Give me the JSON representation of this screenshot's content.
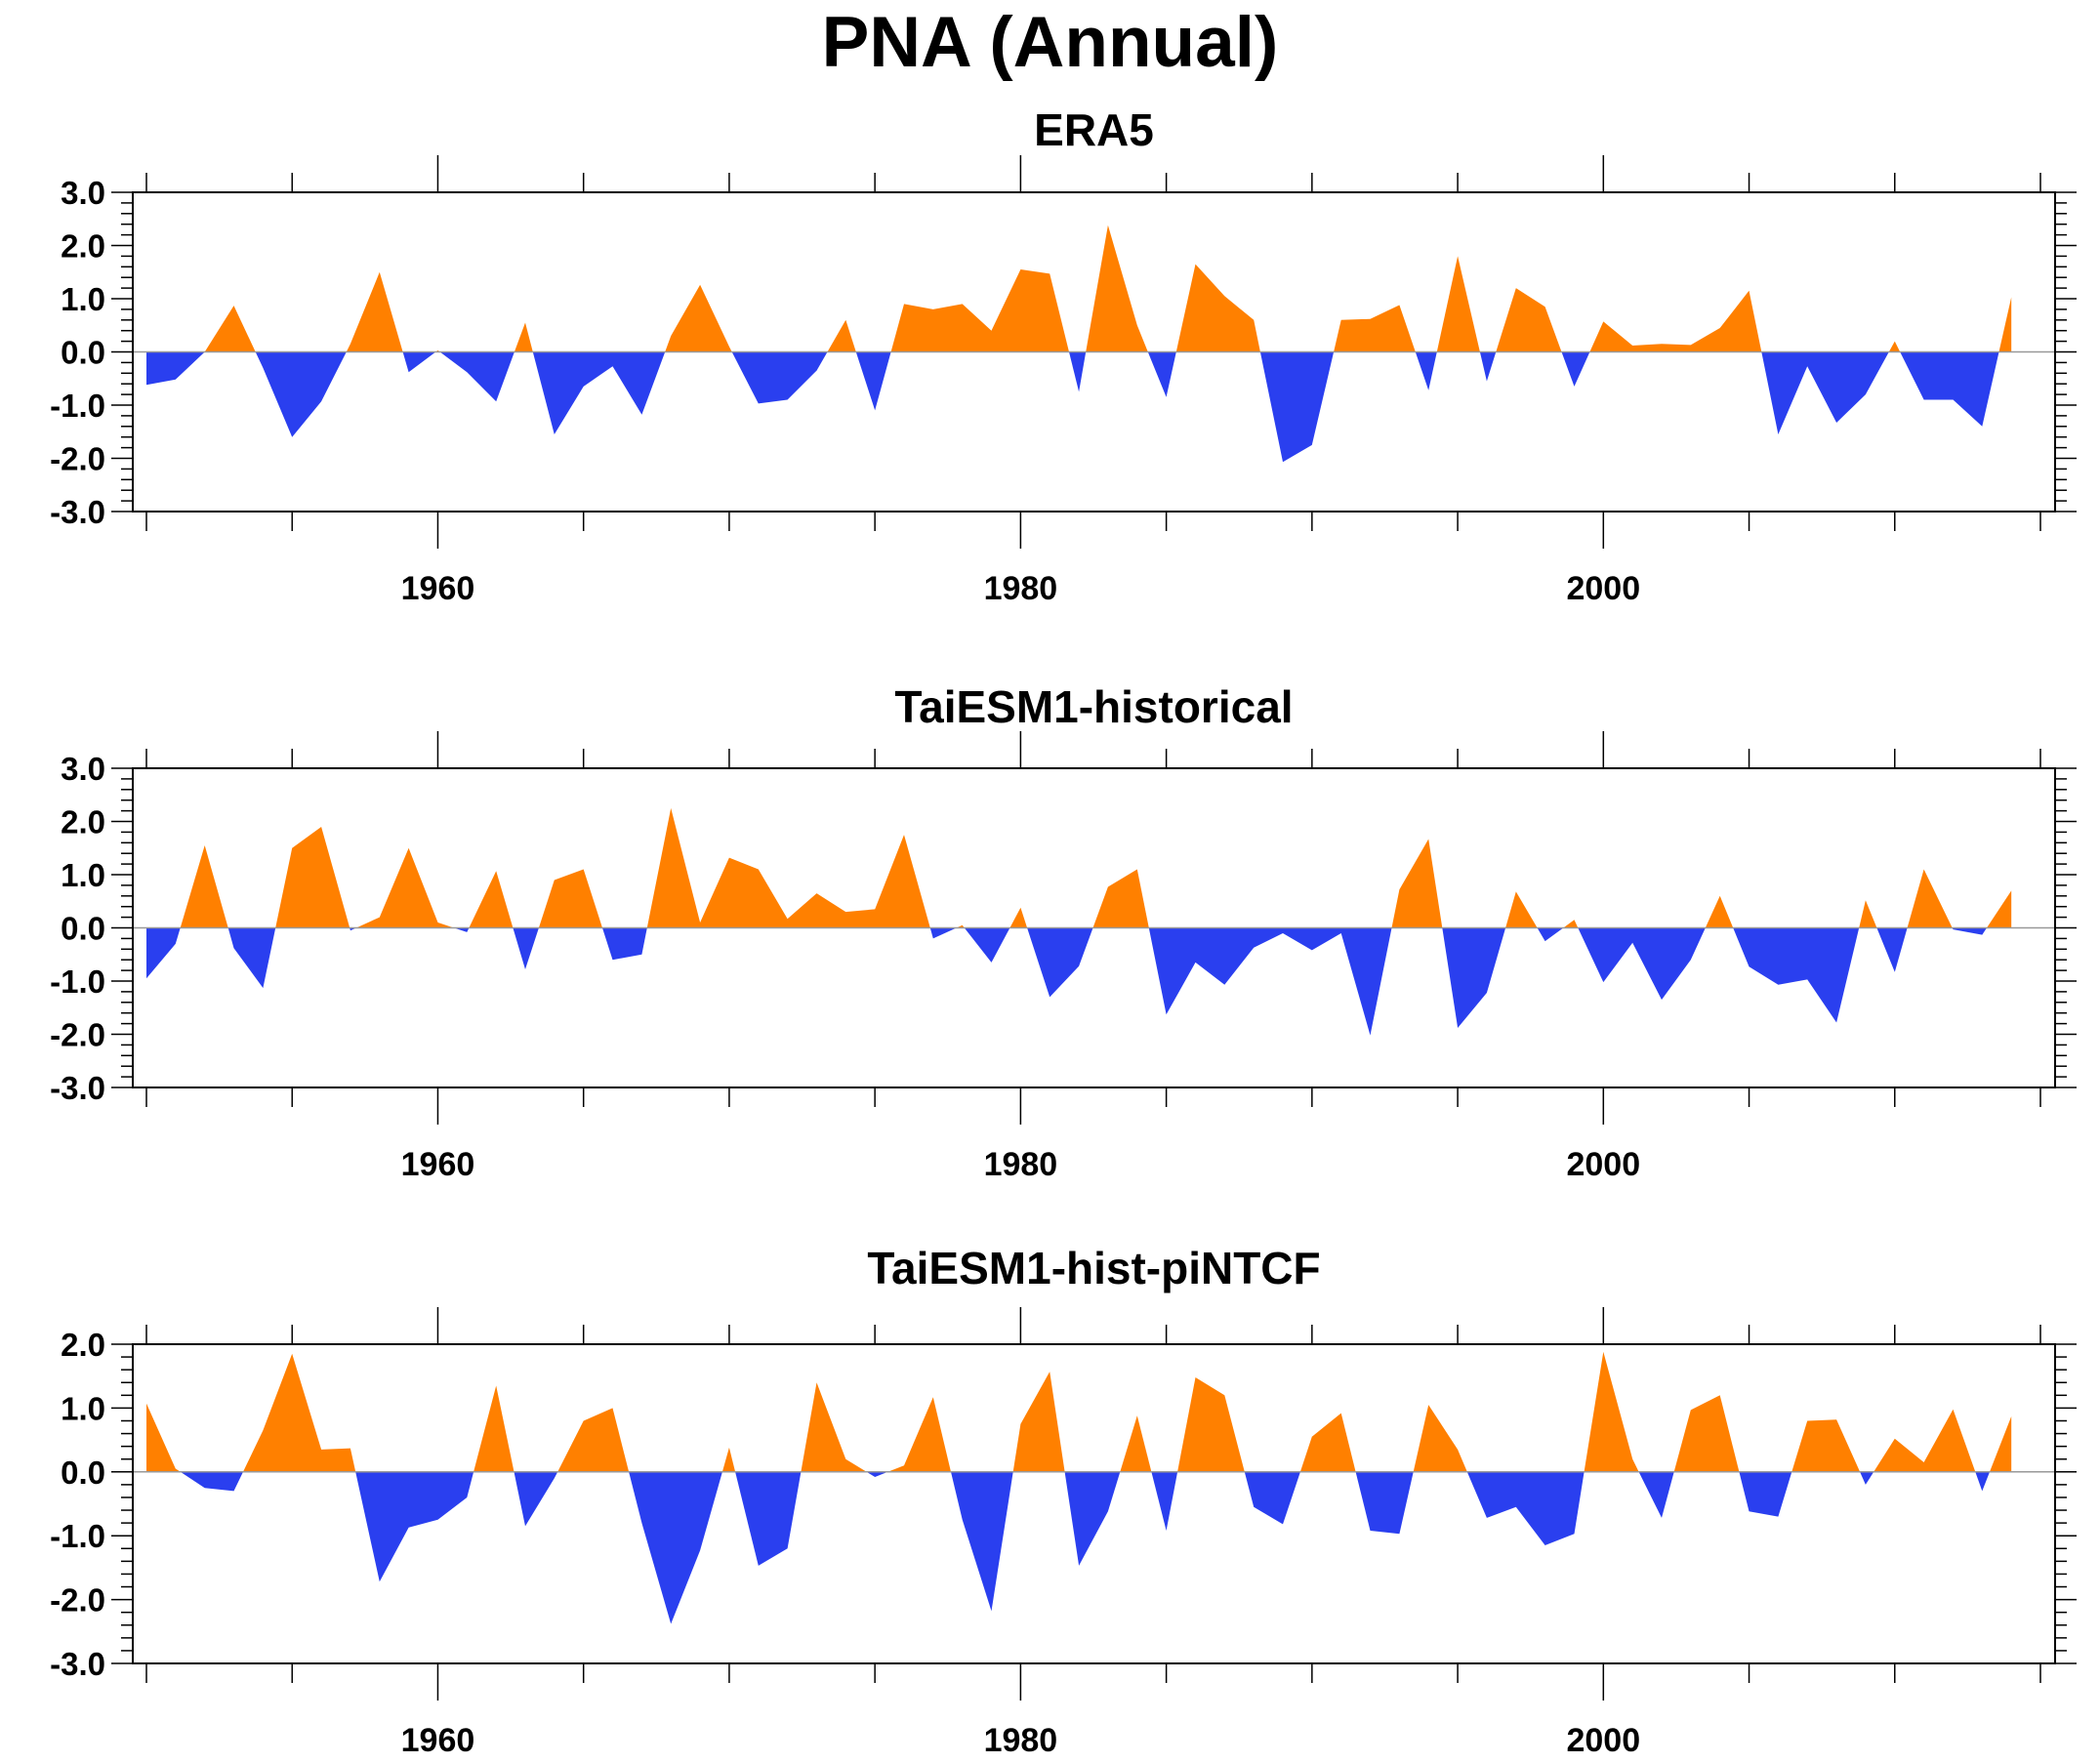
{
  "title": "PNA (Annual)",
  "colors": {
    "positive": "#FF8000",
    "negative": "#2A3FEF",
    "axis": "#000000",
    "zeroline": "#999999"
  },
  "chart_data": [
    {
      "type": "area",
      "title": "ERA5",
      "x_start": 1950,
      "x_end": 2014,
      "xlim": [
        1949.5,
        2015
      ],
      "ylim": [
        -3,
        3
      ],
      "yticks": [
        "3.0",
        "2.0",
        "1.0",
        "0.0",
        "-1.0",
        "-2.0",
        "-3.0"
      ],
      "ytick_values": [
        3,
        2,
        1,
        0,
        -1,
        -2,
        -3
      ],
      "xticks": [
        "1960",
        "1980",
        "2000"
      ],
      "xtick_values": [
        1960,
        1980,
        2000
      ],
      "values": [
        -0.62,
        -0.52,
        0.0,
        0.87,
        -0.3,
        -1.6,
        -0.93,
        0.15,
        1.5,
        -0.38,
        0.03,
        -0.38,
        -0.93,
        0.55,
        -1.55,
        -0.65,
        -0.27,
        -1.18,
        0.3,
        1.26,
        0.1,
        -0.97,
        -0.9,
        -0.35,
        0.6,
        -1.1,
        0.9,
        0.8,
        0.9,
        0.4,
        1.55,
        1.47,
        -0.75,
        2.38,
        0.5,
        -0.85,
        1.65,
        1.05,
        0.6,
        -2.07,
        -1.75,
        0.6,
        0.62,
        0.88,
        -0.72,
        1.8,
        -0.55,
        1.2,
        0.85,
        -0.65,
        0.57,
        0.12,
        0.15,
        0.13,
        0.45,
        1.15,
        -1.55,
        -0.27,
        -1.33,
        -0.8,
        0.2,
        -0.9,
        -0.9,
        -1.4,
        1.03
      ]
    },
    {
      "type": "area",
      "title": "TaiESM1-historical",
      "x_start": 1950,
      "x_end": 2014,
      "xlim": [
        1949.5,
        2015
      ],
      "ylim": [
        -3,
        3
      ],
      "yticks": [
        "3.0",
        "2.0",
        "1.0",
        "0.0",
        "-1.0",
        "-2.0",
        "-3.0"
      ],
      "ytick_values": [
        3,
        2,
        1,
        0,
        -1,
        -2,
        -3
      ],
      "xticks": [
        "1960",
        "1980",
        "2000"
      ],
      "xtick_values": [
        1960,
        1980,
        2000
      ],
      "values": [
        -0.95,
        -0.3,
        1.55,
        -0.38,
        -1.13,
        1.5,
        1.9,
        -0.05,
        0.2,
        1.5,
        0.1,
        -0.08,
        1.07,
        -0.78,
        0.9,
        1.1,
        -0.6,
        -0.5,
        2.25,
        0.1,
        1.32,
        1.1,
        0.17,
        0.65,
        0.3,
        0.35,
        1.75,
        -0.2,
        0.05,
        -0.65,
        0.38,
        -1.3,
        -0.72,
        0.77,
        1.1,
        -1.63,
        -0.65,
        -1.07,
        -0.37,
        -0.1,
        -0.42,
        -0.1,
        -2.02,
        0.72,
        1.67,
        -1.88,
        -1.22,
        0.68,
        -0.25,
        0.15,
        -1.02,
        -0.28,
        -1.35,
        -0.6,
        0.6,
        -0.73,
        -1.07,
        -0.97,
        -1.78,
        0.52,
        -0.83,
        1.1,
        -0.03,
        -0.13,
        0.7
      ]
    },
    {
      "type": "area",
      "title": "TaiESM1-hist-piNTCF",
      "x_start": 1950,
      "x_end": 2014,
      "xlim": [
        1949.5,
        2015
      ],
      "ylim": [
        -3,
        2
      ],
      "yticks": [
        "2.0",
        "1.0",
        "0.0",
        "-1.0",
        "-2.0",
        "-3.0"
      ],
      "ytick_values": [
        2,
        1,
        0,
        -1,
        -2,
        -3
      ],
      "xticks": [
        "1960",
        "1980",
        "2000"
      ],
      "xtick_values": [
        1960,
        1980,
        2000
      ],
      "values": [
        1.07,
        0.05,
        -0.25,
        -0.3,
        0.65,
        1.85,
        0.35,
        0.37,
        -1.72,
        -0.87,
        -0.75,
        -0.4,
        1.35,
        -0.85,
        -0.1,
        0.8,
        1.0,
        -0.8,
        -2.38,
        -1.23,
        0.38,
        -1.47,
        -1.2,
        1.4,
        0.2,
        -0.08,
        0.1,
        1.17,
        -0.75,
        -2.18,
        0.75,
        1.57,
        -1.47,
        -0.62,
        0.88,
        -0.92,
        1.48,
        1.2,
        -0.55,
        -0.82,
        0.55,
        0.92,
        -0.92,
        -0.97,
        1.05,
        0.35,
        -0.72,
        -0.55,
        -1.15,
        -0.97,
        1.88,
        0.2,
        -0.72,
        0.97,
        1.2,
        -0.62,
        -0.7,
        0.8,
        0.82,
        -0.2,
        0.52,
        0.15,
        0.98,
        -0.3,
        0.87
      ]
    }
  ]
}
